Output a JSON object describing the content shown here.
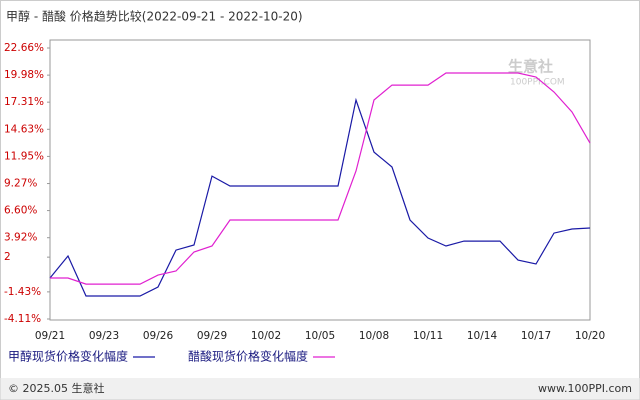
{
  "chart_data": {
    "type": "line",
    "title": "甲醇 - 醋酸 价格趋势比较(2022-09-21 - 2022-10-20)",
    "categories": [
      "09/21",
      null,
      null,
      "09/23",
      null,
      null,
      "09/26",
      null,
      null,
      "09/29",
      null,
      null,
      "10/02",
      null,
      null,
      "10/05",
      null,
      null,
      "10/08",
      null,
      null,
      "10/11",
      null,
      null,
      "10/14",
      null,
      null,
      "10/17",
      null,
      null,
      "10/20"
    ],
    "series": [
      {
        "name": "甲醇现货价格变化幅度",
        "color": "#1a1aa6",
        "values": [
          -0.06,
          2.11,
          -1.84,
          -1.84,
          -1.84,
          -1.84,
          -0.95,
          2.7,
          3.2,
          10.01,
          9.03,
          9.03,
          9.03,
          9.03,
          9.03,
          9.03,
          9.03,
          17.52,
          12.38,
          10.9,
          5.67,
          3.89,
          3.1,
          3.59,
          3.59,
          3.59,
          1.71,
          1.32,
          4.38,
          4.78,
          4.88
        ]
      },
      {
        "name": "醋酸现货价格变化幅度",
        "color": "#e020d0",
        "values": [
          -0.06,
          -0.06,
          -0.66,
          -0.66,
          -0.66,
          -0.66,
          0.23,
          0.63,
          2.51,
          3.1,
          5.67,
          5.67,
          5.67,
          5.67,
          5.67,
          5.67,
          5.67,
          10.51,
          17.52,
          19.0,
          19.0,
          19.0,
          20.19,
          20.19,
          20.19,
          20.19,
          20.19,
          19.79,
          18.31,
          16.34,
          13.27
        ]
      }
    ],
    "ylim": [
      -4.11,
      22.66
    ],
    "yticks": [
      {
        "value": 22.66,
        "label": "22.66%"
      },
      {
        "value": 19.98,
        "label": "19.98%"
      },
      {
        "value": 17.31,
        "label": "17.31%"
      },
      {
        "value": 14.63,
        "label": "14.63%"
      },
      {
        "value": 11.95,
        "label": "11.95%"
      },
      {
        "value": 9.27,
        "label": "9.27%"
      },
      {
        "value": 6.6,
        "label": "6.60%"
      },
      {
        "value": 3.92,
        "label": "3.92%"
      },
      2,
      {
        "value": -1.43,
        "label": "-1.43%"
      },
      {
        "value": -4.11,
        "label": "-4.11%"
      }
    ],
    "grid": false,
    "watermark": "生意社",
    "watermark_sub": "100PPI.COM",
    "footer_left": "© 2025.05 生意社",
    "footer_right": "www.100PPI.com"
  }
}
